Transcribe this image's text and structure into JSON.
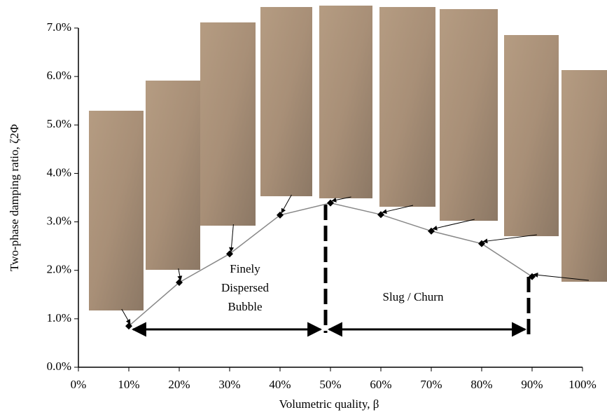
{
  "chart_data": {
    "type": "line",
    "x_label": "Volumetric quality, β",
    "y_label": "Two-phase damping ratio, ζ2Φ",
    "x": [
      10,
      20,
      30,
      40,
      50,
      60,
      70,
      80,
      90
    ],
    "series": [
      {
        "color": "#888888",
        "values": [
          0.85,
          1.75,
          2.34,
          3.14,
          3.39,
          3.15,
          2.81,
          2.55,
          1.87
        ]
      }
    ],
    "xlim": [
      0,
      100
    ],
    "ylim": [
      0,
      7
    ],
    "xticks": [
      {
        "value": 0,
        "label": "0%"
      },
      {
        "value": 10,
        "label": "10%"
      },
      {
        "value": 20,
        "label": "20%"
      },
      {
        "value": 30,
        "label": "30%"
      },
      {
        "value": 40,
        "label": "40%"
      },
      {
        "value": 50,
        "label": "50%"
      },
      {
        "value": 60,
        "label": "60%"
      },
      {
        "value": 70,
        "label": "70%"
      },
      {
        "value": 80,
        "label": "80%"
      },
      {
        "value": 90,
        "label": "90%"
      },
      {
        "value": 100,
        "label": "100%"
      }
    ],
    "yticks": [
      {
        "value": 0,
        "label": "0.0%"
      },
      {
        "value": 1,
        "label": "1.0%"
      },
      {
        "value": 2,
        "label": "2.0%"
      },
      {
        "value": 3,
        "label": "3.0%"
      },
      {
        "value": 4,
        "label": "4.0%"
      },
      {
        "value": 5,
        "label": "5.0%"
      },
      {
        "value": 6,
        "label": "6.0%"
      },
      {
        "value": 7,
        "label": "7.0%"
      }
    ],
    "annotations": [
      "Finely",
      "Dispersed",
      "Bubble",
      "Slug / Churn"
    ]
  }
}
